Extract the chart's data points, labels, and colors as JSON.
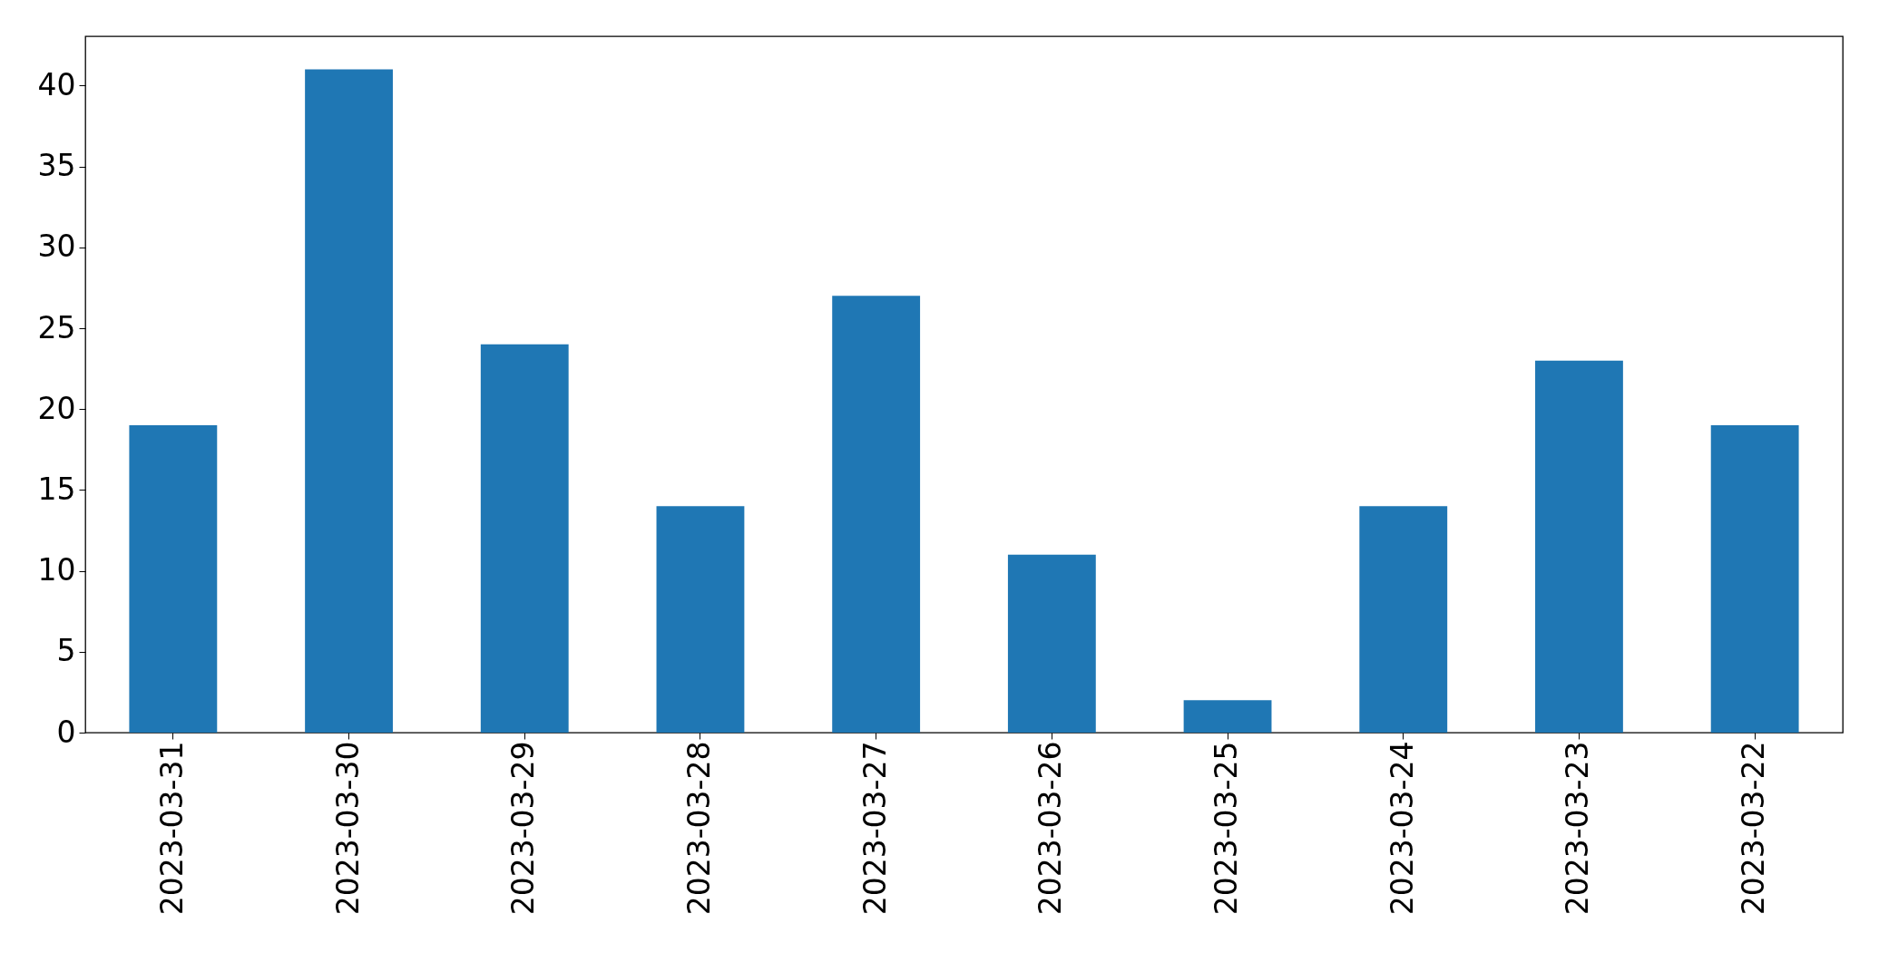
{
  "chart_data": {
    "type": "bar",
    "categories": [
      "2023-03-31",
      "2023-03-30",
      "2023-03-29",
      "2023-03-28",
      "2023-03-27",
      "2023-03-26",
      "2023-03-25",
      "2023-03-24",
      "2023-03-23",
      "2023-03-22"
    ],
    "values": [
      19,
      41,
      24,
      14,
      27,
      11,
      2,
      14,
      23,
      19
    ],
    "color": "#1f77b4",
    "ylim": [
      0,
      43.05
    ],
    "yticks": [
      0,
      5,
      10,
      15,
      20,
      25,
      30,
      35,
      40
    ]
  }
}
